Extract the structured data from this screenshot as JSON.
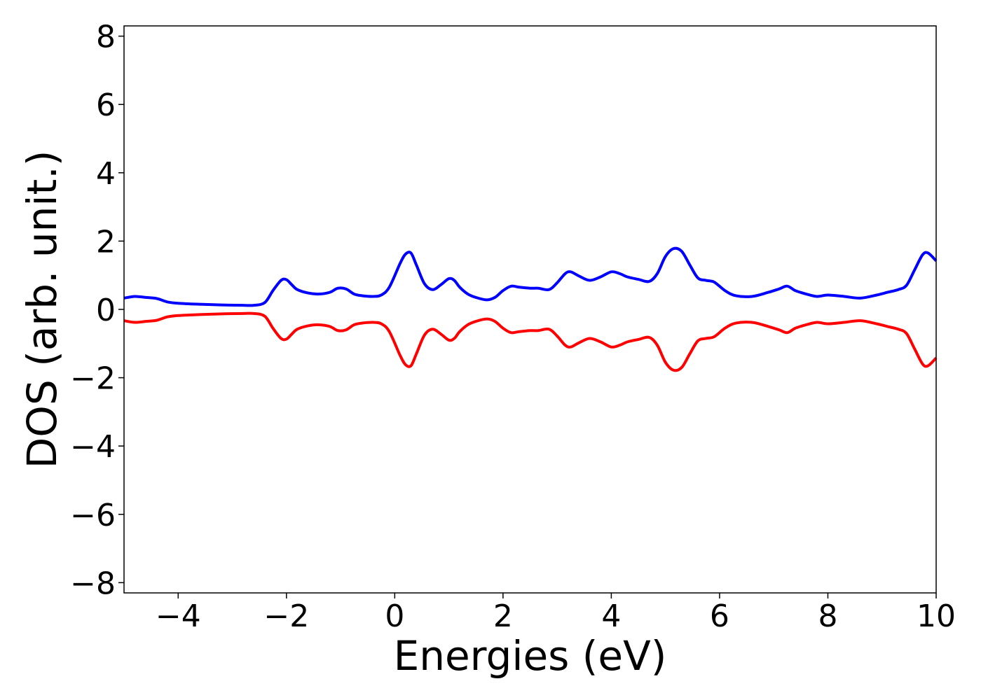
{
  "chart_data": {
    "type": "line",
    "title": "",
    "xlabel": "Energies (eV)",
    "ylabel": "DOS (arb. unit.)",
    "xlim": [
      -5,
      10
    ],
    "ylim": [
      -8.3,
      8.3
    ],
    "xticks": [
      -4,
      -2,
      0,
      2,
      4,
      6,
      8,
      10
    ],
    "xtick_labels": [
      "−4",
      "−2",
      "0",
      "2",
      "4",
      "6",
      "8",
      "10"
    ],
    "yticks": [
      8,
      6,
      4,
      2,
      0,
      -2,
      -4,
      -6,
      -8
    ],
    "ytick_labels": [
      "8",
      "6",
      "4",
      "2",
      "0",
      "−2",
      "−4",
      "−6",
      "−8"
    ],
    "grid": false,
    "legend": "none",
    "series": [
      {
        "color": "#0000ff",
        "x": [
          -5.0,
          -4.8,
          -4.6,
          -4.4,
          -4.2,
          -4.0,
          -3.6,
          -3.2,
          -2.8,
          -2.6,
          -2.4,
          -2.25,
          -2.1,
          -2.0,
          -1.9,
          -1.8,
          -1.6,
          -1.4,
          -1.2,
          -1.05,
          -0.9,
          -0.75,
          -0.6,
          -0.4,
          -0.25,
          -0.1,
          0.1,
          0.2,
          0.3,
          0.4,
          0.55,
          0.7,
          0.85,
          1.0,
          1.1,
          1.2,
          1.35,
          1.5,
          1.7,
          1.85,
          2.0,
          2.15,
          2.3,
          2.5,
          2.65,
          2.85,
          3.0,
          3.15,
          3.25,
          3.4,
          3.6,
          3.8,
          4.0,
          4.15,
          4.3,
          4.5,
          4.7,
          4.85,
          5.0,
          5.15,
          5.3,
          5.45,
          5.6,
          5.75,
          5.9,
          6.1,
          6.3,
          6.6,
          6.9,
          7.1,
          7.25,
          7.4,
          7.6,
          7.8,
          8.0,
          8.3,
          8.6,
          8.9,
          9.1,
          9.3,
          9.45,
          9.6,
          9.75,
          9.85,
          10.0
        ],
        "y": [
          0.33,
          0.38,
          0.35,
          0.32,
          0.22,
          0.18,
          0.15,
          0.13,
          0.12,
          0.12,
          0.2,
          0.55,
          0.85,
          0.87,
          0.72,
          0.58,
          0.48,
          0.45,
          0.5,
          0.62,
          0.6,
          0.45,
          0.4,
          0.38,
          0.42,
          0.65,
          1.35,
          1.62,
          1.65,
          1.3,
          0.75,
          0.58,
          0.72,
          0.9,
          0.85,
          0.65,
          0.45,
          0.35,
          0.28,
          0.35,
          0.55,
          0.68,
          0.65,
          0.62,
          0.62,
          0.58,
          0.78,
          1.05,
          1.1,
          0.98,
          0.85,
          0.95,
          1.1,
          1.05,
          0.95,
          0.88,
          0.82,
          1.05,
          1.55,
          1.78,
          1.7,
          1.3,
          0.92,
          0.85,
          0.8,
          0.55,
          0.4,
          0.38,
          0.5,
          0.6,
          0.68,
          0.55,
          0.45,
          0.38,
          0.42,
          0.38,
          0.33,
          0.42,
          0.5,
          0.58,
          0.7,
          1.15,
          1.6,
          1.65,
          1.42
        ]
      },
      {
        "color": "#ff0000",
        "x": [
          -5.0,
          -4.8,
          -4.6,
          -4.4,
          -4.2,
          -4.0,
          -3.6,
          -3.2,
          -2.8,
          -2.6,
          -2.4,
          -2.25,
          -2.1,
          -2.0,
          -1.9,
          -1.8,
          -1.6,
          -1.4,
          -1.2,
          -1.05,
          -0.9,
          -0.75,
          -0.6,
          -0.4,
          -0.25,
          -0.1,
          0.1,
          0.2,
          0.3,
          0.4,
          0.55,
          0.7,
          0.85,
          1.0,
          1.1,
          1.2,
          1.35,
          1.5,
          1.7,
          1.85,
          2.0,
          2.15,
          2.3,
          2.5,
          2.65,
          2.85,
          3.0,
          3.15,
          3.25,
          3.4,
          3.6,
          3.8,
          4.0,
          4.15,
          4.3,
          4.5,
          4.7,
          4.85,
          5.0,
          5.15,
          5.3,
          5.45,
          5.6,
          5.75,
          5.9,
          6.1,
          6.3,
          6.6,
          6.9,
          7.1,
          7.25,
          7.4,
          7.6,
          7.8,
          8.0,
          8.3,
          8.6,
          8.9,
          9.1,
          9.3,
          9.45,
          9.6,
          9.75,
          9.85,
          10.0
        ],
        "y": [
          -0.33,
          -0.38,
          -0.35,
          -0.32,
          -0.22,
          -0.18,
          -0.15,
          -0.13,
          -0.12,
          -0.12,
          -0.2,
          -0.55,
          -0.85,
          -0.87,
          -0.72,
          -0.58,
          -0.48,
          -0.45,
          -0.5,
          -0.62,
          -0.6,
          -0.45,
          -0.4,
          -0.38,
          -0.42,
          -0.65,
          -1.35,
          -1.62,
          -1.65,
          -1.3,
          -0.75,
          -0.58,
          -0.72,
          -0.9,
          -0.85,
          -0.65,
          -0.45,
          -0.35,
          -0.28,
          -0.35,
          -0.55,
          -0.68,
          -0.65,
          -0.62,
          -0.62,
          -0.58,
          -0.78,
          -1.05,
          -1.1,
          -0.98,
          -0.85,
          -0.95,
          -1.1,
          -1.05,
          -0.95,
          -0.88,
          -0.82,
          -1.05,
          -1.55,
          -1.78,
          -1.7,
          -1.3,
          -0.92,
          -0.85,
          -0.8,
          -0.55,
          -0.4,
          -0.38,
          -0.5,
          -0.6,
          -0.68,
          -0.55,
          -0.45,
          -0.38,
          -0.42,
          -0.38,
          -0.33,
          -0.42,
          -0.5,
          -0.58,
          -0.7,
          -1.15,
          -1.6,
          -1.65,
          -1.42
        ]
      }
    ]
  }
}
